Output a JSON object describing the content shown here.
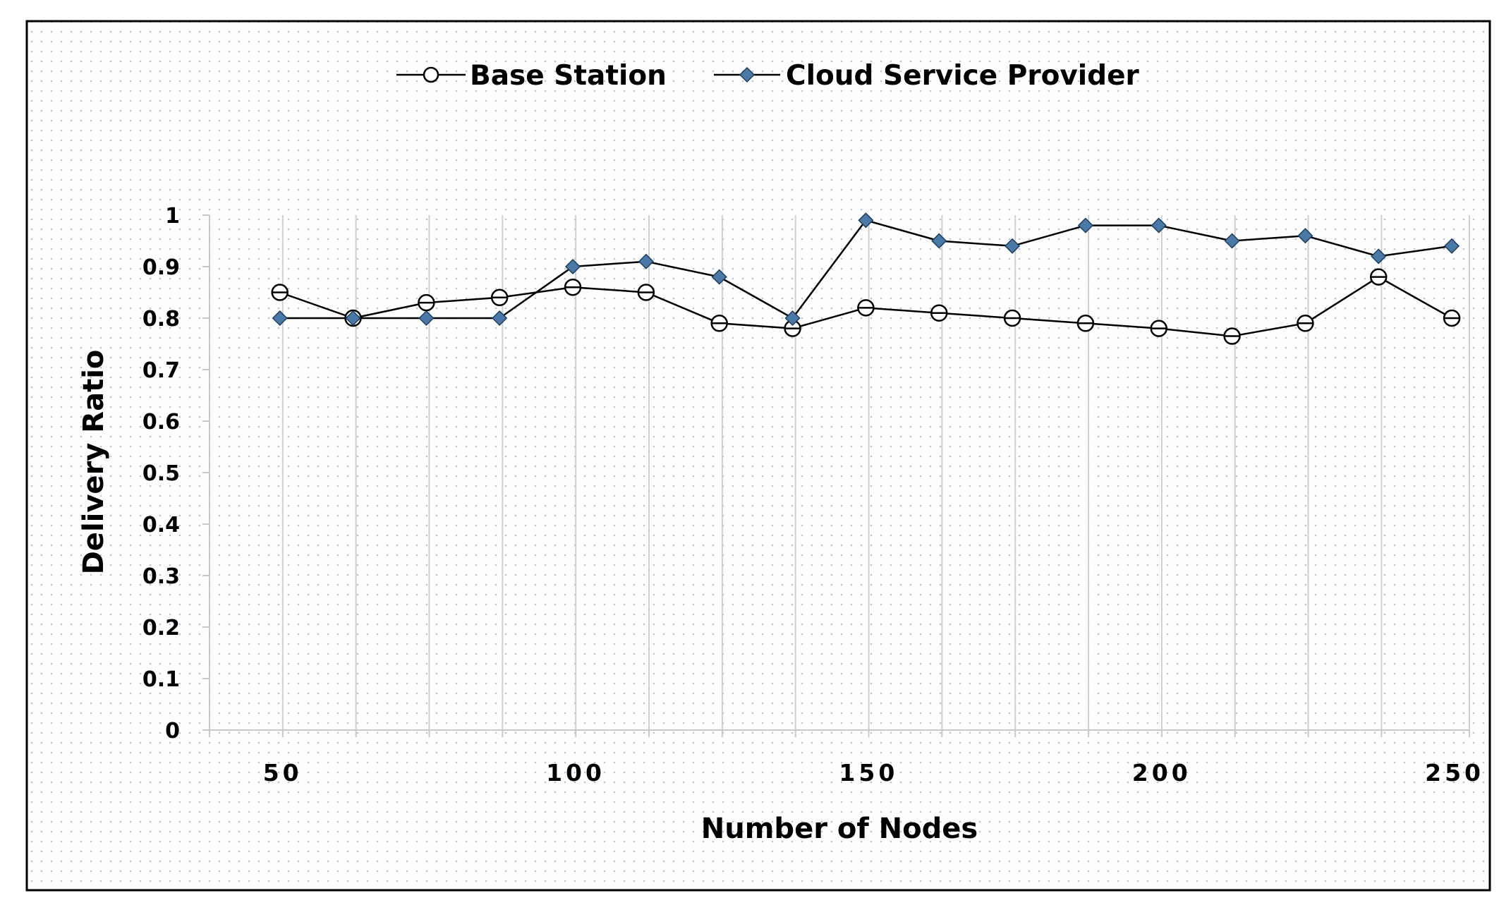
{
  "colors": {
    "background": "#fdfdfd",
    "frame": "#000000",
    "dot_pattern": "#b8c4d8",
    "gridline": "#d0d0d0",
    "axis": "#c8c8c8",
    "base_station_line": "#000000",
    "cloud_marker_fill": "#4a79a8",
    "cloud_marker_stroke": "#1f3d5c"
  },
  "chart_data": {
    "type": "line",
    "title": "",
    "xlabel": "Number of Nodes",
    "ylabel": "Delivery Ratio",
    "xlim": [
      38,
      253
    ],
    "ylim": [
      0,
      1
    ],
    "grid": true,
    "legend_position": "top-center",
    "y_ticks": [
      {
        "value": 0,
        "label": "0"
      },
      {
        "value": 0.1,
        "label": "0.1"
      },
      {
        "value": 0.2,
        "label": "0.2"
      },
      {
        "value": 0.3,
        "label": "0.3"
      },
      {
        "value": 0.4,
        "label": "0.4"
      },
      {
        "value": 0.5,
        "label": "0.5"
      },
      {
        "value": 0.6,
        "label": "0.6"
      },
      {
        "value": 0.7,
        "label": "0.7"
      },
      {
        "value": 0.8,
        "label": "0.8"
      },
      {
        "value": 0.9,
        "label": "0.9"
      },
      {
        "value": 1,
        "label": "1"
      }
    ],
    "x_ticks": [
      {
        "value": 50,
        "label": "50"
      },
      {
        "value": 100,
        "label": "100"
      },
      {
        "value": 150,
        "label": "150"
      },
      {
        "value": 200,
        "label": "200"
      },
      {
        "value": 250,
        "label": "250"
      }
    ],
    "x_gridlines": [
      38,
      50.5,
      63,
      75.5,
      88,
      100.5,
      113,
      125.5,
      138,
      150.5,
      163,
      175.5,
      188,
      200.5,
      213,
      225.5,
      238,
      253
    ],
    "x": [
      50,
      62.5,
      75,
      87.5,
      100,
      112.5,
      125,
      137.5,
      150,
      162.5,
      175,
      187.5,
      200,
      212.5,
      225,
      237.5,
      250
    ],
    "series": [
      {
        "name": "Base Station",
        "marker": "circle",
        "values": [
          0.85,
          0.8,
          0.83,
          0.84,
          0.86,
          0.85,
          0.79,
          0.78,
          0.82,
          0.81,
          0.8,
          0.79,
          0.78,
          0.765,
          0.79,
          0.88,
          0.8
        ]
      },
      {
        "name": "Cloud Service Provider",
        "marker": "diamond",
        "values": [
          0.8,
          0.8,
          0.8,
          0.8,
          0.9,
          0.91,
          0.88,
          0.8,
          0.99,
          0.95,
          0.94,
          0.98,
          0.98,
          0.95,
          0.96,
          0.92,
          0.94
        ]
      }
    ]
  }
}
